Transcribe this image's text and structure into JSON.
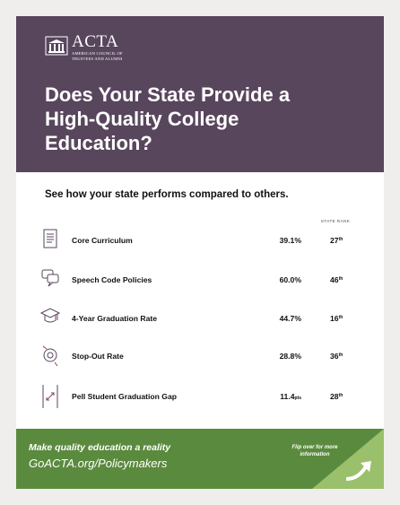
{
  "header": {
    "logo": "ACTA",
    "logo_subtitle": "American Council of Trustees and Alumni",
    "title": "Does Your State Provide a High-Quality College Education?"
  },
  "subtitle": "See how your state performs compared to others.",
  "rank_heading": "STATE RANK",
  "rows": [
    {
      "label": "Core Curriculum",
      "value": "39.1",
      "unit": "%",
      "rank": "27",
      "suffix": "th"
    },
    {
      "label": "Speech Code Policies",
      "value": "60.0",
      "unit": "%",
      "rank": "46",
      "suffix": "th"
    },
    {
      "label": "4-Year Graduation Rate",
      "value": "44.7",
      "unit": "%",
      "rank": "16",
      "suffix": "th"
    },
    {
      "label": "Stop-Out Rate",
      "value": "28.8",
      "unit": "%",
      "rank": "36",
      "suffix": "th"
    },
    {
      "label": "Pell Student Graduation Gap",
      "value": "11.4",
      "unit": "pts",
      "rank": "28",
      "suffix": "th"
    }
  ],
  "footer": {
    "tagline": "Make quality education a reality",
    "url": "GoACTA.org/Policymakers",
    "flip": "Flip over for more information"
  }
}
